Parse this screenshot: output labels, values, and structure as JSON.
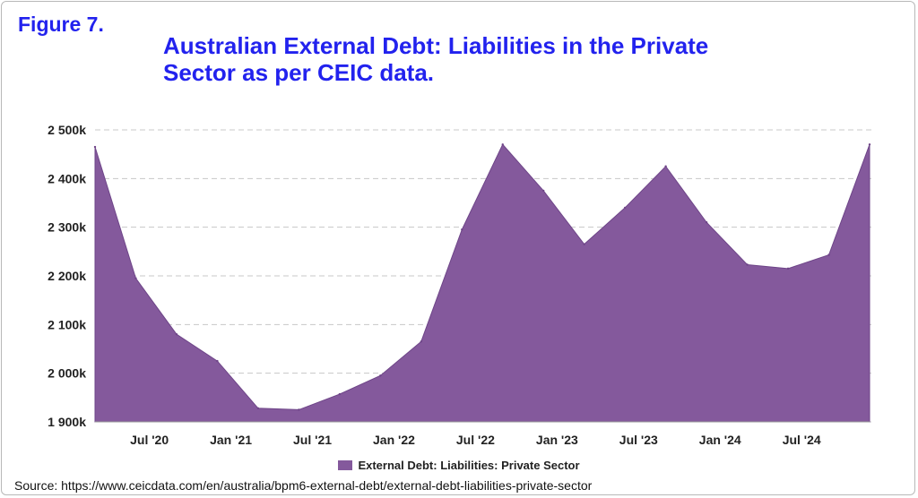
{
  "figure_label": "Figure 7.",
  "title_lines": [
    "Australian External Debt: Liabilities in the Private",
    "Sector as per CEIC data."
  ],
  "source": "Source: https://www.ceicdata.com/en/australia/bpm6-external-debt/external-debt-liabilities-private-sector",
  "colors": {
    "area": "#84599c",
    "title": "#2222ee",
    "grid": "#c8c8c8"
  },
  "chart_data": {
    "type": "area",
    "title": "Australian External Debt: Liabilities in the Private Sector as per CEIC data.",
    "xlabel": "",
    "ylabel": "",
    "grid": true,
    "legend_position": "bottom-center",
    "ylim": [
      1900000,
      2500000
    ],
    "yticks": [
      1900000,
      2000000,
      2100000,
      2200000,
      2300000,
      2400000,
      2500000
    ],
    "ytick_labels": [
      "1 900k",
      "2 000k",
      "2 100k",
      "2 200k",
      "2 300k",
      "2 400k",
      "2 500k"
    ],
    "xlim": [
      "2020-03",
      "2024-12"
    ],
    "xticks": [
      "2020-07",
      "2021-01",
      "2021-07",
      "2022-01",
      "2022-07",
      "2023-01",
      "2023-07",
      "2024-01",
      "2024-07"
    ],
    "xtick_labels": [
      "Jul '20",
      "Jan '21",
      "Jul '21",
      "Jan '22",
      "Jul '22",
      "Jan '23",
      "Jul '23",
      "Jan '24",
      "Jul '24"
    ],
    "series": [
      {
        "name": "External Debt: Liabilities: Private Sector",
        "x": [
          "2020-03",
          "2020-06",
          "2020-09",
          "2020-12",
          "2021-03",
          "2021-06",
          "2021-09",
          "2021-12",
          "2022-03",
          "2022-06",
          "2022-09",
          "2022-12",
          "2023-03",
          "2023-06",
          "2023-09",
          "2023-12",
          "2024-03",
          "2024-06",
          "2024-09",
          "2024-12"
        ],
        "values": [
          2465000,
          2195000,
          2080000,
          2025000,
          1928000,
          1925000,
          1957000,
          1995000,
          2065000,
          2295000,
          2470000,
          2375000,
          2265000,
          2340000,
          2425000,
          2310000,
          2223000,
          2215000,
          2243000,
          2470000
        ]
      }
    ]
  }
}
